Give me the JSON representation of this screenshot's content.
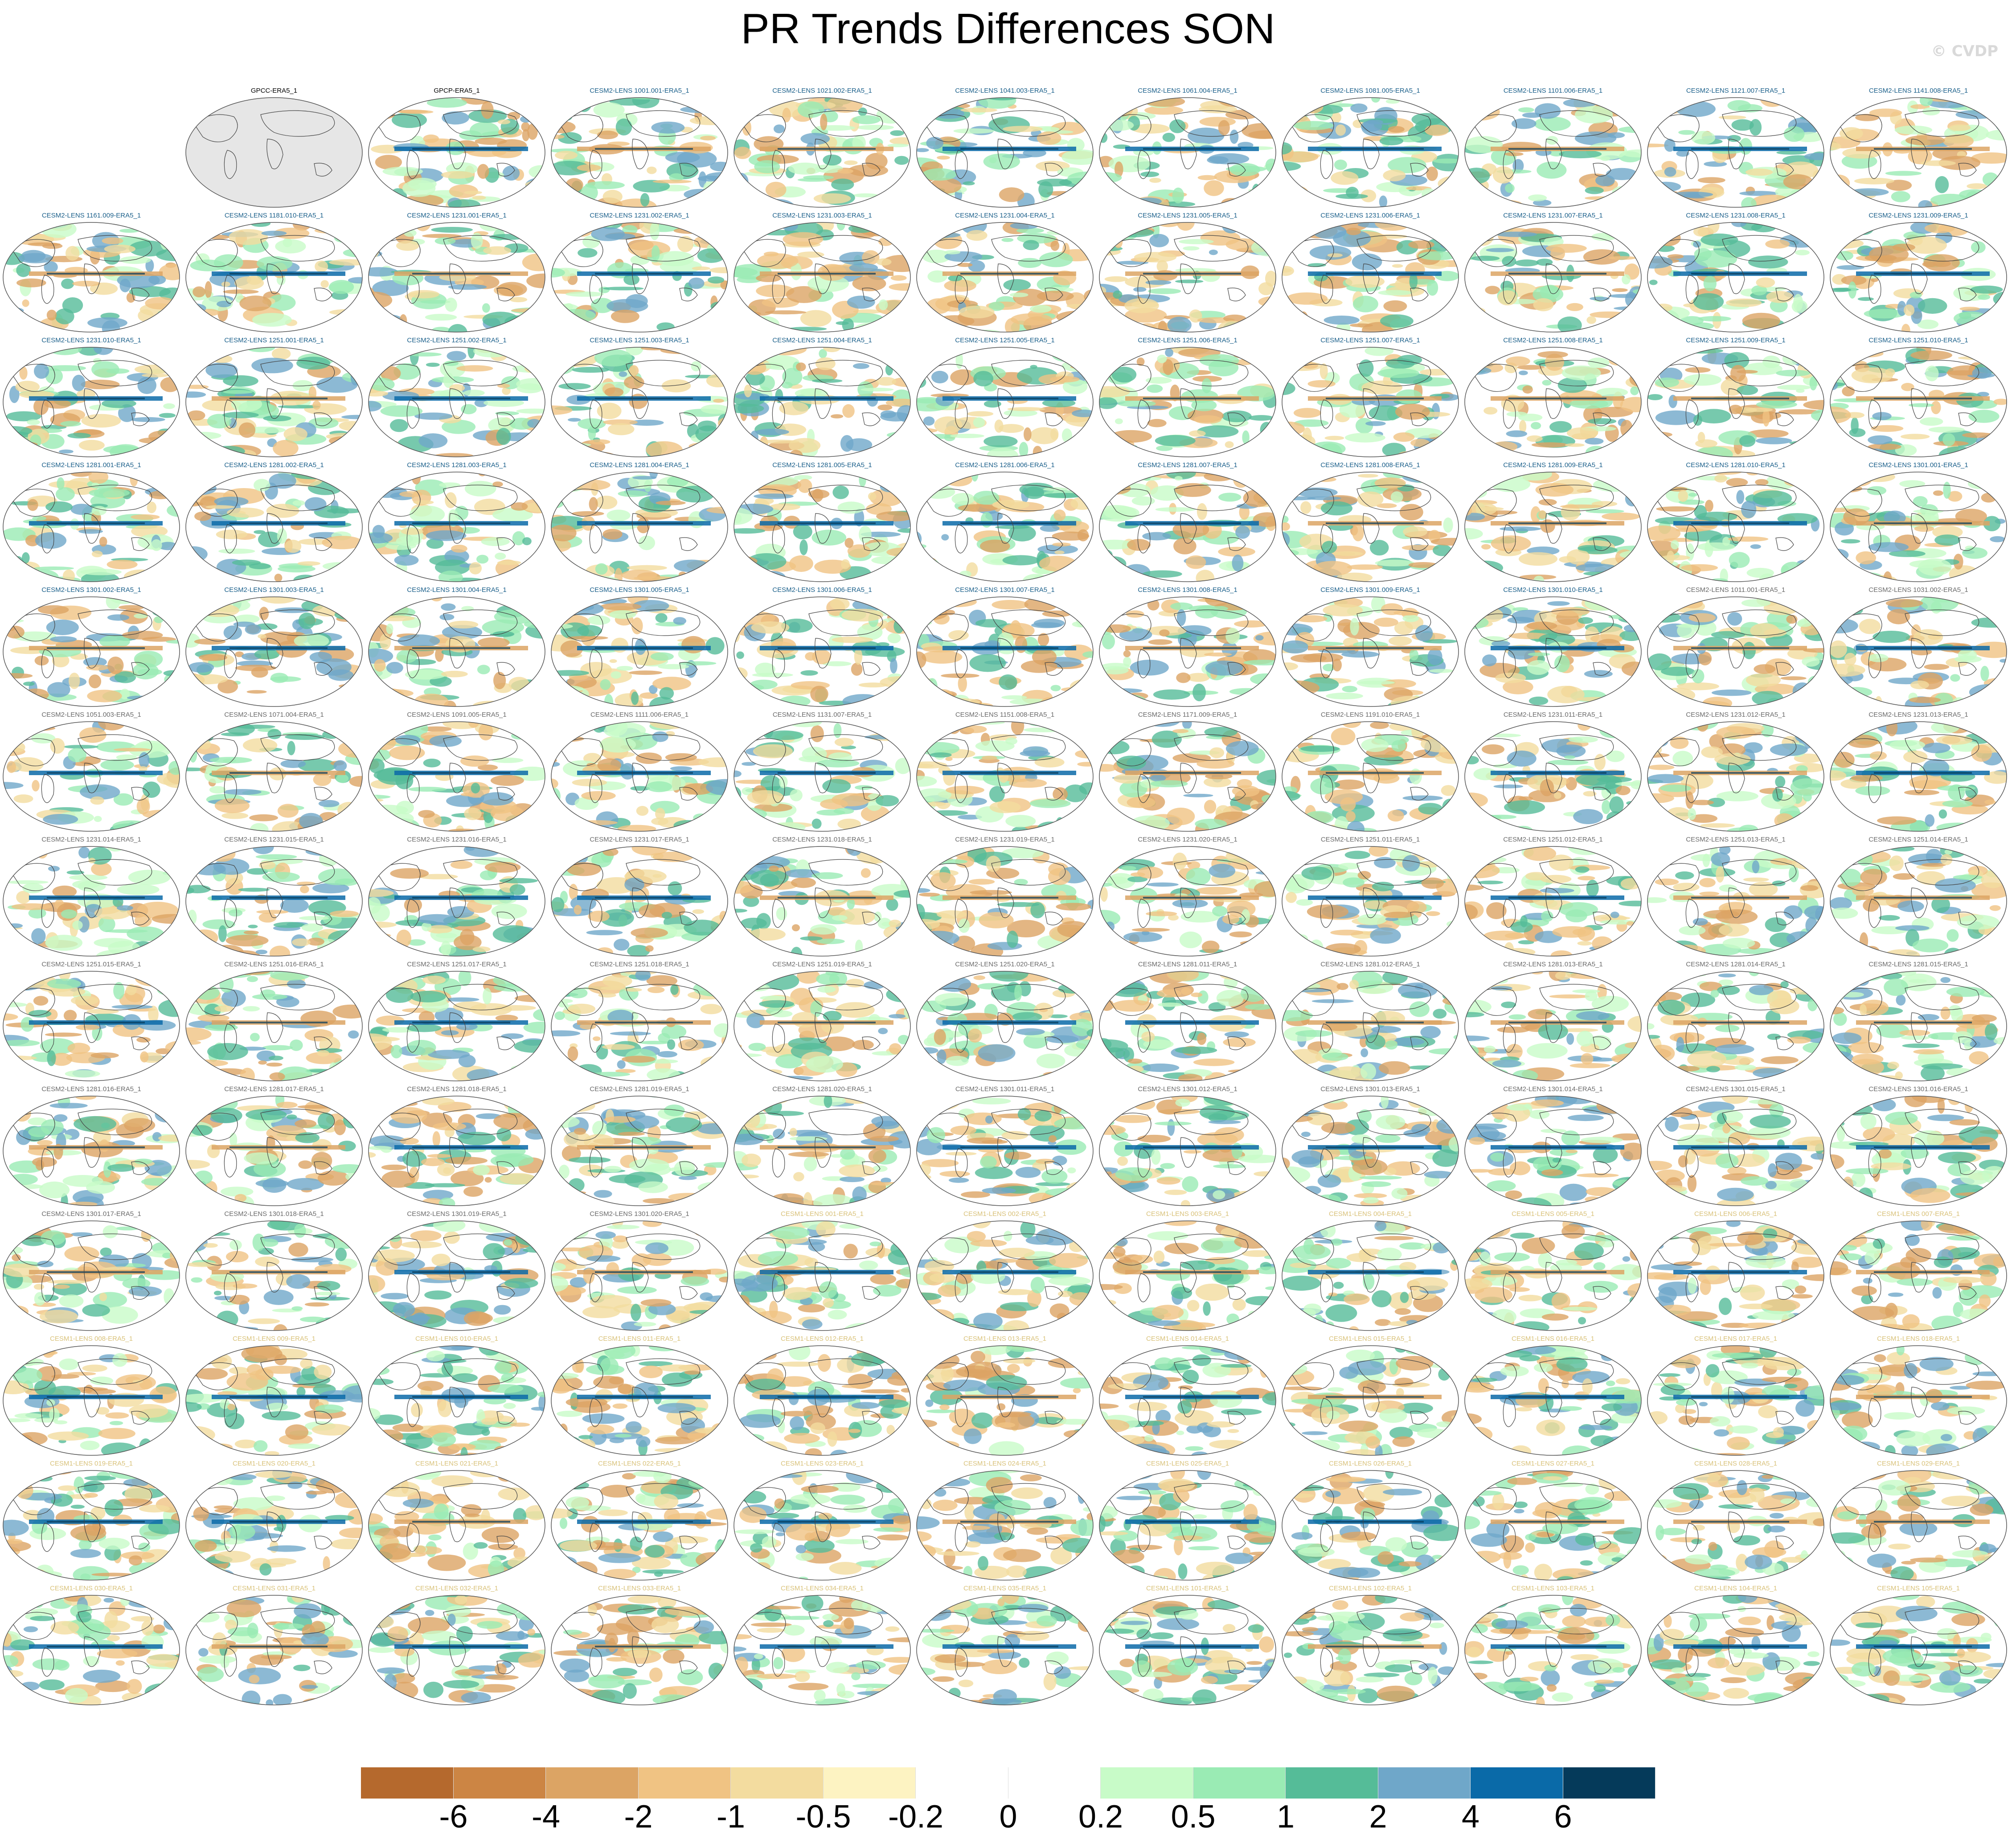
{
  "title": "PR Trends Differences SON",
  "watermark": "© CVDP",
  "panel_colors": {
    "obs": "#000000",
    "cesm2_first": "#1a5f8a",
    "cesm2_second": "#6a6a6a",
    "cesm1": "#d9c27a"
  },
  "panels": [
    {
      "label": "GPCC-ERA5_1",
      "group": "obs",
      "shade": "gray"
    },
    {
      "label": "GPCP-ERA5_1",
      "group": "obs",
      "shade": "map"
    },
    {
      "label": "CESM2-LENS 1001.001-ERA5_1",
      "group": "cesm2_first"
    },
    {
      "label": "CESM2-LENS 1021.002-ERA5_1",
      "group": "cesm2_first"
    },
    {
      "label": "CESM2-LENS 1041.003-ERA5_1",
      "group": "cesm2_first"
    },
    {
      "label": "CESM2-LENS 1061.004-ERA5_1",
      "group": "cesm2_first"
    },
    {
      "label": "CESM2-LENS 1081.005-ERA5_1",
      "group": "cesm2_first"
    },
    {
      "label": "CESM2-LENS 1101.006-ERA5_1",
      "group": "cesm2_first"
    },
    {
      "label": "CESM2-LENS 1121.007-ERA5_1",
      "group": "cesm2_first"
    },
    {
      "label": "CESM2-LENS 1141.008-ERA5_1",
      "group": "cesm2_first"
    },
    {
      "label": "CESM2-LENS 1161.009-ERA5_1",
      "group": "cesm2_first"
    },
    {
      "label": "CESM2-LENS 1181.010-ERA5_1",
      "group": "cesm2_first"
    },
    {
      "label": "CESM2-LENS 1231.001-ERA5_1",
      "group": "cesm2_first"
    },
    {
      "label": "CESM2-LENS 1231.002-ERA5_1",
      "group": "cesm2_first"
    },
    {
      "label": "CESM2-LENS 1231.003-ERA5_1",
      "group": "cesm2_first"
    },
    {
      "label": "CESM2-LENS 1231.004-ERA5_1",
      "group": "cesm2_first"
    },
    {
      "label": "CESM2-LENS 1231.005-ERA5_1",
      "group": "cesm2_first"
    },
    {
      "label": "CESM2-LENS 1231.006-ERA5_1",
      "group": "cesm2_first"
    },
    {
      "label": "CESM2-LENS 1231.007-ERA5_1",
      "group": "cesm2_first"
    },
    {
      "label": "CESM2-LENS 1231.008-ERA5_1",
      "group": "cesm2_first"
    },
    {
      "label": "CESM2-LENS 1231.009-ERA5_1",
      "group": "cesm2_first"
    },
    {
      "label": "CESM2-LENS 1231.010-ERA5_1",
      "group": "cesm2_first"
    },
    {
      "label": "CESM2-LENS 1251.001-ERA5_1",
      "group": "cesm2_first"
    },
    {
      "label": "CESM2-LENS 1251.002-ERA5_1",
      "group": "cesm2_first"
    },
    {
      "label": "CESM2-LENS 1251.003-ERA5_1",
      "group": "cesm2_first"
    },
    {
      "label": "CESM2-LENS 1251.004-ERA5_1",
      "group": "cesm2_first"
    },
    {
      "label": "CESM2-LENS 1251.005-ERA5_1",
      "group": "cesm2_first"
    },
    {
      "label": "CESM2-LENS 1251.006-ERA5_1",
      "group": "cesm2_first"
    },
    {
      "label": "CESM2-LENS 1251.007-ERA5_1",
      "group": "cesm2_first"
    },
    {
      "label": "CESM2-LENS 1251.008-ERA5_1",
      "group": "cesm2_first"
    },
    {
      "label": "CESM2-LENS 1251.009-ERA5_1",
      "group": "cesm2_first"
    },
    {
      "label": "CESM2-LENS 1251.010-ERA5_1",
      "group": "cesm2_first"
    },
    {
      "label": "CESM2-LENS 1281.001-ERA5_1",
      "group": "cesm2_first"
    },
    {
      "label": "CESM2-LENS 1281.002-ERA5_1",
      "group": "cesm2_first"
    },
    {
      "label": "CESM2-LENS 1281.003-ERA5_1",
      "group": "cesm2_first"
    },
    {
      "label": "CESM2-LENS 1281.004-ERA5_1",
      "group": "cesm2_first"
    },
    {
      "label": "CESM2-LENS 1281.005-ERA5_1",
      "group": "cesm2_first"
    },
    {
      "label": "CESM2-LENS 1281.006-ERA5_1",
      "group": "cesm2_first"
    },
    {
      "label": "CESM2-LENS 1281.007-ERA5_1",
      "group": "cesm2_first"
    },
    {
      "label": "CESM2-LENS 1281.008-ERA5_1",
      "group": "cesm2_first"
    },
    {
      "label": "CESM2-LENS 1281.009-ERA5_1",
      "group": "cesm2_first"
    },
    {
      "label": "CESM2-LENS 1281.010-ERA5_1",
      "group": "cesm2_first"
    },
    {
      "label": "CESM2-LENS 1301.001-ERA5_1",
      "group": "cesm2_first"
    },
    {
      "label": "CESM2-LENS 1301.002-ERA5_1",
      "group": "cesm2_first"
    },
    {
      "label": "CESM2-LENS 1301.003-ERA5_1",
      "group": "cesm2_first"
    },
    {
      "label": "CESM2-LENS 1301.004-ERA5_1",
      "group": "cesm2_first"
    },
    {
      "label": "CESM2-LENS 1301.005-ERA5_1",
      "group": "cesm2_first"
    },
    {
      "label": "CESM2-LENS 1301.006-ERA5_1",
      "group": "cesm2_first"
    },
    {
      "label": "CESM2-LENS 1301.007-ERA5_1",
      "group": "cesm2_first"
    },
    {
      "label": "CESM2-LENS 1301.008-ERA5_1",
      "group": "cesm2_first"
    },
    {
      "label": "CESM2-LENS 1301.009-ERA5_1",
      "group": "cesm2_first"
    },
    {
      "label": "CESM2-LENS 1301.010-ERA5_1",
      "group": "cesm2_first"
    },
    {
      "label": "CESM2-LENS 1011.001-ERA5_1",
      "group": "cesm2_second"
    },
    {
      "label": "CESM2-LENS 1031.002-ERA5_1",
      "group": "cesm2_second"
    },
    {
      "label": "CESM2-LENS 1051.003-ERA5_1",
      "group": "cesm2_second"
    },
    {
      "label": "CESM2-LENS 1071.004-ERA5_1",
      "group": "cesm2_second"
    },
    {
      "label": "CESM2-LENS 1091.005-ERA5_1",
      "group": "cesm2_second"
    },
    {
      "label": "CESM2-LENS 1111.006-ERA5_1",
      "group": "cesm2_second"
    },
    {
      "label": "CESM2-LENS 1131.007-ERA5_1",
      "group": "cesm2_second"
    },
    {
      "label": "CESM2-LENS 1151.008-ERA5_1",
      "group": "cesm2_second"
    },
    {
      "label": "CESM2-LENS 1171.009-ERA5_1",
      "group": "cesm2_second"
    },
    {
      "label": "CESM2-LENS 1191.010-ERA5_1",
      "group": "cesm2_second"
    },
    {
      "label": "CESM2-LENS 1231.011-ERA5_1",
      "group": "cesm2_second"
    },
    {
      "label": "CESM2-LENS 1231.012-ERA5_1",
      "group": "cesm2_second"
    },
    {
      "label": "CESM2-LENS 1231.013-ERA5_1",
      "group": "cesm2_second"
    },
    {
      "label": "CESM2-LENS 1231.014-ERA5_1",
      "group": "cesm2_second"
    },
    {
      "label": "CESM2-LENS 1231.015-ERA5_1",
      "group": "cesm2_second"
    },
    {
      "label": "CESM2-LENS 1231.016-ERA5_1",
      "group": "cesm2_second"
    },
    {
      "label": "CESM2-LENS 1231.017-ERA5_1",
      "group": "cesm2_second"
    },
    {
      "label": "CESM2-LENS 1231.018-ERA5_1",
      "group": "cesm2_second"
    },
    {
      "label": "CESM2-LENS 1231.019-ERA5_1",
      "group": "cesm2_second"
    },
    {
      "label": "CESM2-LENS 1231.020-ERA5_1",
      "group": "cesm2_second"
    },
    {
      "label": "CESM2-LENS 1251.011-ERA5_1",
      "group": "cesm2_second"
    },
    {
      "label": "CESM2-LENS 1251.012-ERA5_1",
      "group": "cesm2_second"
    },
    {
      "label": "CESM2-LENS 1251.013-ERA5_1",
      "group": "cesm2_second"
    },
    {
      "label": "CESM2-LENS 1251.014-ERA5_1",
      "group": "cesm2_second"
    },
    {
      "label": "CESM2-LENS 1251.015-ERA5_1",
      "group": "cesm2_second"
    },
    {
      "label": "CESM2-LENS 1251.016-ERA5_1",
      "group": "cesm2_second"
    },
    {
      "label": "CESM2-LENS 1251.017-ERA5_1",
      "group": "cesm2_second"
    },
    {
      "label": "CESM2-LENS 1251.018-ERA5_1",
      "group": "cesm2_second"
    },
    {
      "label": "CESM2-LENS 1251.019-ERA5_1",
      "group": "cesm2_second"
    },
    {
      "label": "CESM2-LENS 1251.020-ERA5_1",
      "group": "cesm2_second"
    },
    {
      "label": "CESM2-LENS 1281.011-ERA5_1",
      "group": "cesm2_second"
    },
    {
      "label": "CESM2-LENS 1281.012-ERA5_1",
      "group": "cesm2_second"
    },
    {
      "label": "CESM2-LENS 1281.013-ERA5_1",
      "group": "cesm2_second"
    },
    {
      "label": "CESM2-LENS 1281.014-ERA5_1",
      "group": "cesm2_second"
    },
    {
      "label": "CESM2-LENS 1281.015-ERA5_1",
      "group": "cesm2_second"
    },
    {
      "label": "CESM2-LENS 1281.016-ERA5_1",
      "group": "cesm2_second"
    },
    {
      "label": "CESM2-LENS 1281.017-ERA5_1",
      "group": "cesm2_second"
    },
    {
      "label": "CESM2-LENS 1281.018-ERA5_1",
      "group": "cesm2_second"
    },
    {
      "label": "CESM2-LENS 1281.019-ERA5_1",
      "group": "cesm2_second"
    },
    {
      "label": "CESM2-LENS 1281.020-ERA5_1",
      "group": "cesm2_second"
    },
    {
      "label": "CESM2-LENS 1301.011-ERA5_1",
      "group": "cesm2_second"
    },
    {
      "label": "CESM2-LENS 1301.012-ERA5_1",
      "group": "cesm2_second"
    },
    {
      "label": "CESM2-LENS 1301.013-ERA5_1",
      "group": "cesm2_second"
    },
    {
      "label": "CESM2-LENS 1301.014-ERA5_1",
      "group": "cesm2_second"
    },
    {
      "label": "CESM2-LENS 1301.015-ERA5_1",
      "group": "cesm2_second"
    },
    {
      "label": "CESM2-LENS 1301.016-ERA5_1",
      "group": "cesm2_second"
    },
    {
      "label": "CESM2-LENS 1301.017-ERA5_1",
      "group": "cesm2_second"
    },
    {
      "label": "CESM2-LENS 1301.018-ERA5_1",
      "group": "cesm2_second"
    },
    {
      "label": "CESM2-LENS 1301.019-ERA5_1",
      "group": "cesm2_second"
    },
    {
      "label": "CESM2-LENS 1301.020-ERA5_1",
      "group": "cesm2_second"
    },
    {
      "label": "CESM1-LENS 001-ERA5_1",
      "group": "cesm1"
    },
    {
      "label": "CESM1-LENS 002-ERA5_1",
      "group": "cesm1"
    },
    {
      "label": "CESM1-LENS 003-ERA5_1",
      "group": "cesm1"
    },
    {
      "label": "CESM1-LENS 004-ERA5_1",
      "group": "cesm1"
    },
    {
      "label": "CESM1-LENS 005-ERA5_1",
      "group": "cesm1"
    },
    {
      "label": "CESM1-LENS 006-ERA5_1",
      "group": "cesm1"
    },
    {
      "label": "CESM1-LENS 007-ERA5_1",
      "group": "cesm1"
    },
    {
      "label": "CESM1-LENS 008-ERA5_1",
      "group": "cesm1"
    },
    {
      "label": "CESM1-LENS 009-ERA5_1",
      "group": "cesm1"
    },
    {
      "label": "CESM1-LENS 010-ERA5_1",
      "group": "cesm1"
    },
    {
      "label": "CESM1-LENS 011-ERA5_1",
      "group": "cesm1"
    },
    {
      "label": "CESM1-LENS 012-ERA5_1",
      "group": "cesm1"
    },
    {
      "label": "CESM1-LENS 013-ERA5_1",
      "group": "cesm1"
    },
    {
      "label": "CESM1-LENS 014-ERA5_1",
      "group": "cesm1"
    },
    {
      "label": "CESM1-LENS 015-ERA5_1",
      "group": "cesm1"
    },
    {
      "label": "CESM1-LENS 016-ERA5_1",
      "group": "cesm1"
    },
    {
      "label": "CESM1-LENS 017-ERA5_1",
      "group": "cesm1"
    },
    {
      "label": "CESM1-LENS 018-ERA5_1",
      "group": "cesm1"
    },
    {
      "label": "CESM1-LENS 019-ERA5_1",
      "group": "cesm1"
    },
    {
      "label": "CESM1-LENS 020-ERA5_1",
      "group": "cesm1"
    },
    {
      "label": "CESM1-LENS 021-ERA5_1",
      "group": "cesm1"
    },
    {
      "label": "CESM1-LENS 022-ERA5_1",
      "group": "cesm1"
    },
    {
      "label": "CESM1-LENS 023-ERA5_1",
      "group": "cesm1"
    },
    {
      "label": "CESM1-LENS 024-ERA5_1",
      "group": "cesm1"
    },
    {
      "label": "CESM1-LENS 025-ERA5_1",
      "group": "cesm1"
    },
    {
      "label": "CESM1-LENS 026-ERA5_1",
      "group": "cesm1"
    },
    {
      "label": "CESM1-LENS 027-ERA5_1",
      "group": "cesm1"
    },
    {
      "label": "CESM1-LENS 028-ERA5_1",
      "group": "cesm1"
    },
    {
      "label": "CESM1-LENS 029-ERA5_1",
      "group": "cesm1"
    },
    {
      "label": "CESM1-LENS 030-ERA5_1",
      "group": "cesm1"
    },
    {
      "label": "CESM1-LENS 031-ERA5_1",
      "group": "cesm1"
    },
    {
      "label": "CESM1-LENS 032-ERA5_1",
      "group": "cesm1"
    },
    {
      "label": "CESM1-LENS 033-ERA5_1",
      "group": "cesm1"
    },
    {
      "label": "CESM1-LENS 034-ERA5_1",
      "group": "cesm1"
    },
    {
      "label": "CESM1-LENS 035-ERA5_1",
      "group": "cesm1"
    },
    {
      "label": "CESM1-LENS 101-ERA5_1",
      "group": "cesm1"
    },
    {
      "label": "CESM1-LENS 102-ERA5_1",
      "group": "cesm1"
    },
    {
      "label": "CESM1-LENS 103-ERA5_1",
      "group": "cesm1"
    },
    {
      "label": "CESM1-LENS 104-ERA5_1",
      "group": "cesm1"
    },
    {
      "label": "CESM1-LENS 105-ERA5_1",
      "group": "cesm1"
    }
  ],
  "colorbar": {
    "colors": [
      "#b5692d",
      "#cc8544",
      "#dca464",
      "#f0c383",
      "#f3dc9f",
      "#fdf3c2",
      "#ffffff",
      "#ffffff",
      "#c8fbc8",
      "#9aebb4",
      "#55bc98",
      "#6fa7c9",
      "#0a6aa8",
      "#053a5a"
    ],
    "labels": [
      "-6",
      "-4",
      "-2",
      "-1",
      "-0.5",
      "-0.2",
      "0",
      "0.2",
      "0.5",
      "1",
      "2",
      "4",
      "6"
    ]
  }
}
